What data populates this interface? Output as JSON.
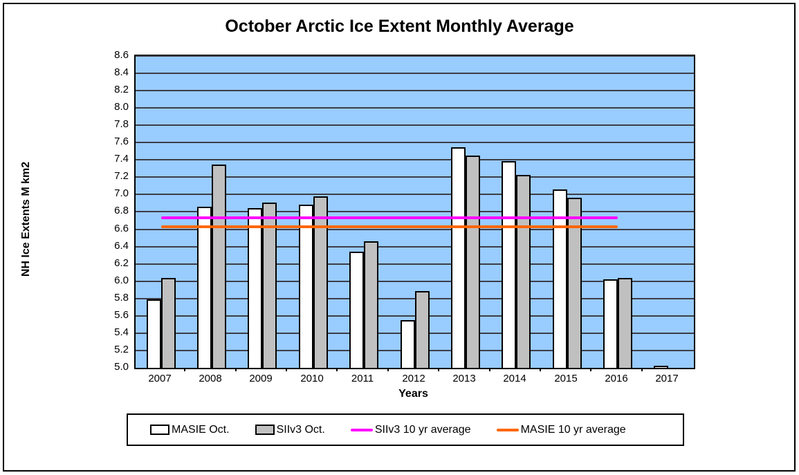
{
  "colors": {
    "plot_background": "#99CCFF",
    "gridline": "#3d3d46",
    "masie_bar": "#FFFFFF",
    "siiv3_bar": "#C0C0C0",
    "siiv3_avg_line": "#FF00FF",
    "masie_avg_line": "#FF6600",
    "text": "#000000",
    "border": "#000000"
  },
  "chart_data": {
    "type": "bar",
    "title": "October Arctic Ice Extent Monthly Average",
    "xlabel": "Years",
    "ylabel": "NH Ice Extents M km2",
    "ylim": [
      5.0,
      8.6
    ],
    "ytick_step": 0.2,
    "grid": "horizontal",
    "legend_position": "bottom",
    "categories": [
      "2007",
      "2008",
      "2009",
      "2010",
      "2011",
      "2012",
      "2013",
      "2014",
      "2015",
      "2016",
      "2017"
    ],
    "series": [
      {
        "name": "MASIE Oct.",
        "type": "bar",
        "color": "#FFFFFF",
        "values": [
          5.79,
          6.86,
          6.84,
          6.88,
          6.34,
          5.55,
          7.55,
          7.39,
          7.06,
          6.02,
          5.02
        ]
      },
      {
        "name": "SIIv3 Oct.",
        "type": "bar",
        "color": "#C0C0C0",
        "values": [
          6.04,
          7.35,
          6.91,
          6.98,
          6.46,
          5.89,
          7.45,
          7.23,
          6.96,
          6.04,
          null
        ]
      },
      {
        "name": "SIIv3 10 yr average",
        "type": "line",
        "color": "#FF00FF",
        "value": 6.73,
        "span_categories": [
          "2007",
          "2016"
        ]
      },
      {
        "name": "MASIE 10 yr average",
        "type": "line",
        "color": "#FF6600",
        "value": 6.63,
        "span_categories": [
          "2007",
          "2016"
        ]
      }
    ]
  }
}
